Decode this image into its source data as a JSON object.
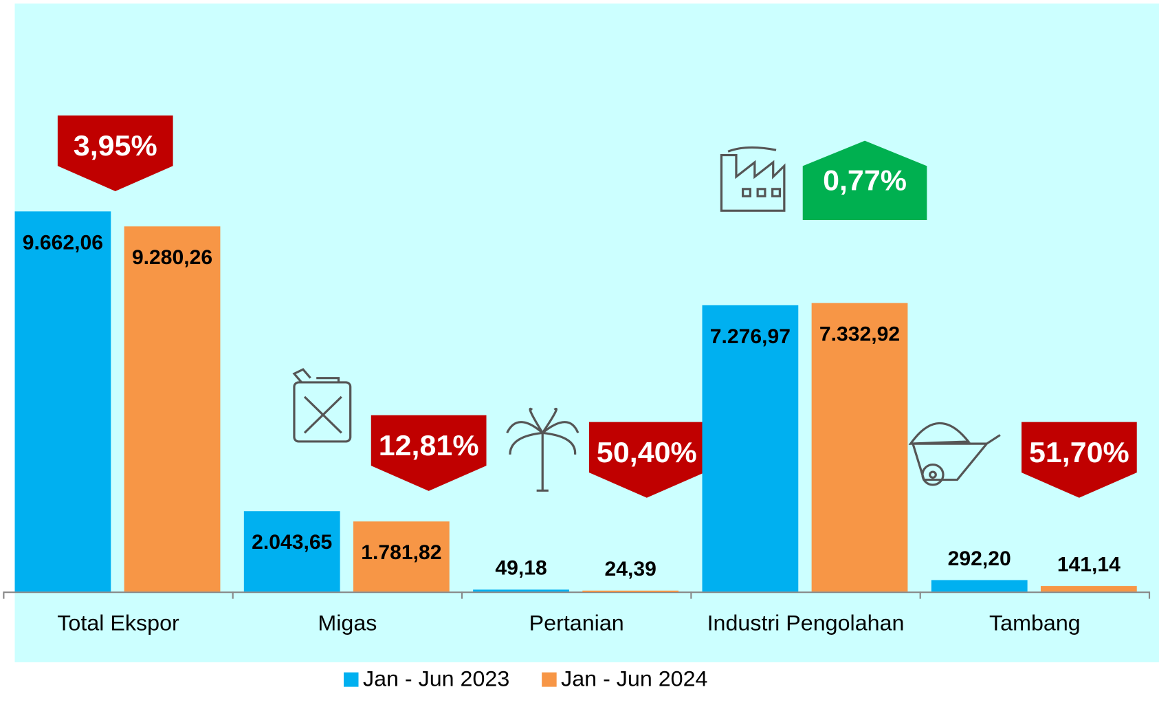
{
  "chart_data": {
    "type": "bar",
    "categories": [
      "Total Ekspor",
      "Migas",
      "Pertanian",
      "Industri Pengolahan",
      "Tambang"
    ],
    "series": [
      {
        "name": "Jan - Jun 2023",
        "color": "#00b0f0",
        "values": [
          9662.06,
          2043.65,
          49.18,
          7276.97,
          292.2
        ],
        "value_labels": [
          "9.662,06",
          "2.043,65",
          "49,18",
          "7.276,97",
          "292,20"
        ]
      },
      {
        "name": "Jan - Jun 2024",
        "color": "#f79646",
        "values": [
          9280.26,
          1781.82,
          24.39,
          7332.92,
          141.14
        ],
        "value_labels": [
          "9.280,26",
          "1.781,82",
          "24,39",
          "7.332,92",
          "141,14"
        ]
      }
    ],
    "change_labels": [
      "3,95%",
      "12,81%",
      "50,40%",
      "0,77%",
      "51,70%"
    ],
    "change_direction": [
      "down",
      "down",
      "down",
      "up",
      "down"
    ],
    "change_colors": [
      "#c00000",
      "#c00000",
      "#c00000",
      "#00b050",
      "#c00000"
    ],
    "ylim": [
      0,
      12000
    ],
    "background": "#ccffff"
  }
}
